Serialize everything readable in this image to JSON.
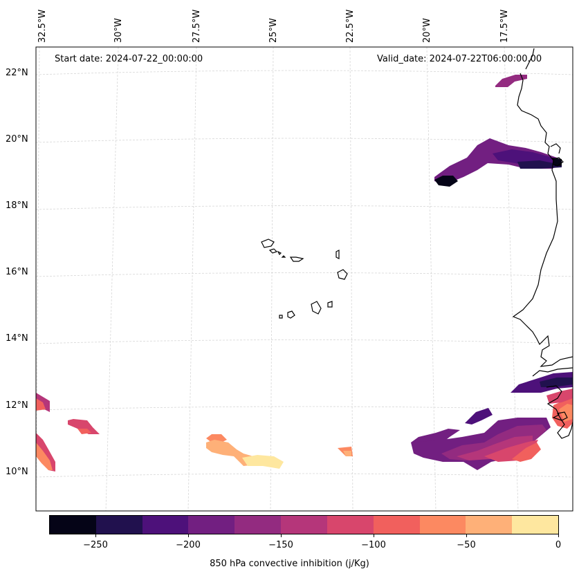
{
  "map": {
    "start_date_label": "Start date: 2024-07-22_00:00:00",
    "valid_date_label": "Valid_date: 2024-07-22T06:00:00.00",
    "longitude_labels": [
      "32.5°W",
      "30°W",
      "27.5°W",
      "25°W",
      "22.5°W",
      "20°W",
      "17.5°W"
    ],
    "latitude_labels": [
      "22°N",
      "20°N",
      "18°N",
      "16°N",
      "14°N",
      "12°N",
      "10°N"
    ],
    "features": [
      "coastline-west-africa",
      "cape-verde-islands",
      "cin-shaded-areas"
    ]
  },
  "colorbar": {
    "label": "850 hPa convective inhibition (j/Kg)",
    "tick_labels": [
      "−250",
      "−200",
      "−150",
      "−100",
      "−50",
      "0"
    ],
    "range": [
      -275,
      0
    ],
    "levels": [
      -275,
      -250,
      -225,
      -200,
      -175,
      -150,
      -125,
      -100,
      -75,
      -50,
      -25,
      0
    ],
    "colors": [
      "#050417",
      "#21114e",
      "#4d117a",
      "#721f81",
      "#932b80",
      "#b5367a",
      "#d8466c",
      "#f1605d",
      "#fc8961",
      "#feb078",
      "#fee79f"
    ]
  }
}
